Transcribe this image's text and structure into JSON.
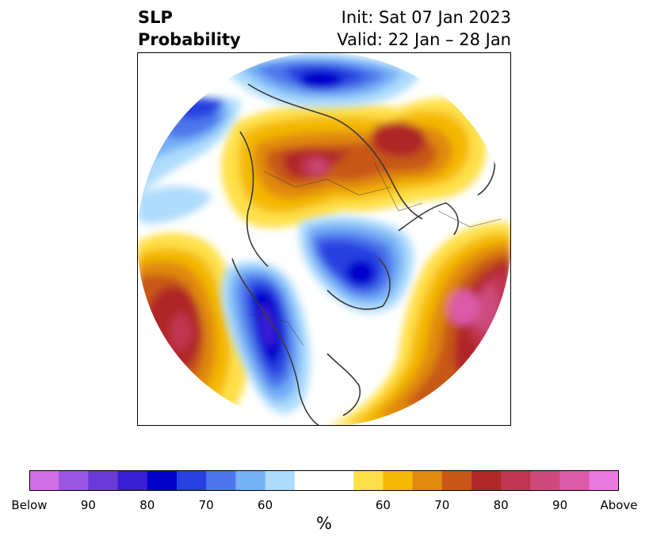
{
  "title": {
    "line1": "SLP",
    "line2": "Probability",
    "init": "Init: Sat 07 Jan 2023",
    "valid": "Valid: 22 Jan – 28 Jan"
  },
  "colorbar": {
    "unit": "%",
    "colors": [
      "#d36fe6",
      "#9a55e3",
      "#6a3ad8",
      "#3a1ed5",
      "#0000cc",
      "#2641e0",
      "#4d76eb",
      "#76b0f5",
      "#aedcfc",
      "#ffffff",
      "#ffffff",
      "#ffe04a",
      "#f4b800",
      "#e08a10",
      "#c85818",
      "#b02828",
      "#c03650",
      "#cd4b7c",
      "#dc5aa8",
      "#e87ae0"
    ],
    "labels": [
      "Below",
      "90",
      "80",
      "70",
      "60",
      "60",
      "70",
      "80",
      "90",
      "Above"
    ]
  },
  "map": {
    "projection": "north-polar-stereographic",
    "features": [
      {
        "name": "negative-anomaly-north-america",
        "color": "#0000cc"
      },
      {
        "name": "negative-anomaly-greenland",
        "color": "#2641e0"
      },
      {
        "name": "negative-anomaly-arctic-siberia",
        "color": "#0000cc"
      },
      {
        "name": "positive-anomaly-north-atlantic",
        "color": "#dc5aa8"
      },
      {
        "name": "positive-anomaly-north-pacific",
        "color": "#c03650"
      },
      {
        "name": "positive-anomaly-russia",
        "color": "#b02828"
      }
    ]
  }
}
